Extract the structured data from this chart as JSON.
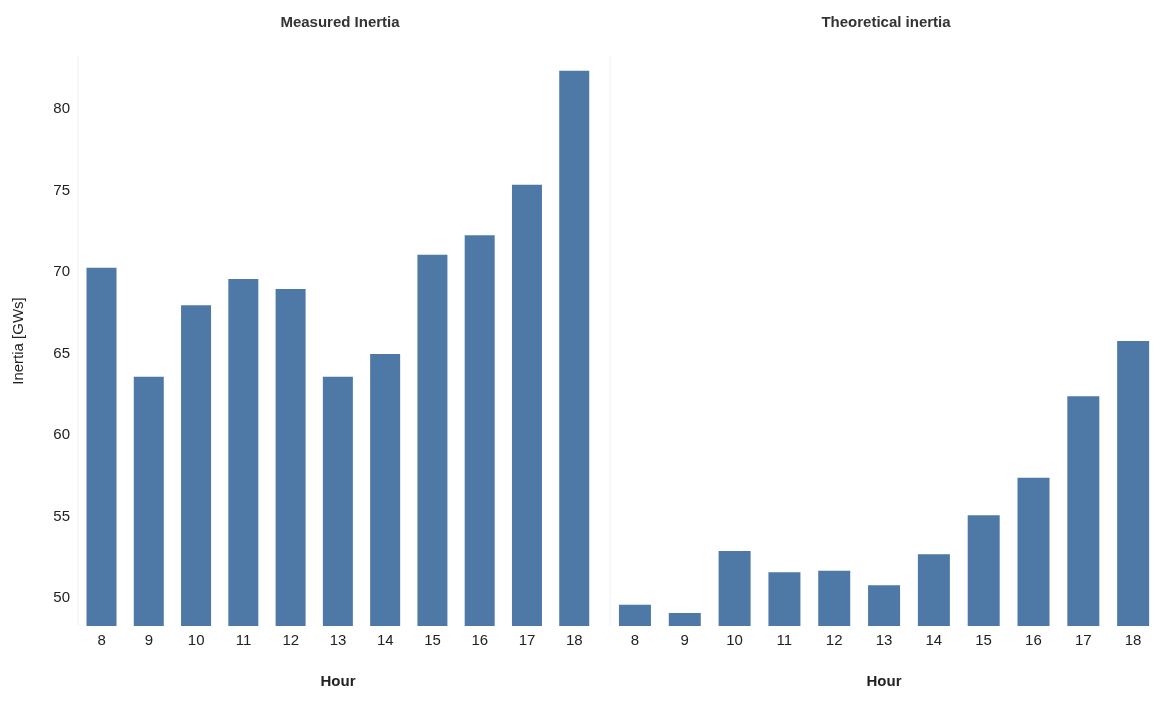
{
  "chart_data": [
    {
      "type": "bar",
      "title": "Measured Inertia",
      "xlabel": "Hour",
      "ylabel": "Inertia [GWs]",
      "categories": [
        "8",
        "9",
        "10",
        "11",
        "12",
        "13",
        "14",
        "15",
        "16",
        "17",
        "18"
      ],
      "values": [
        70.2,
        63.5,
        67.9,
        69.5,
        68.9,
        63.5,
        64.9,
        71.0,
        72.2,
        75.3,
        82.3
      ],
      "color": "#4e79a7",
      "ylim": [
        48.2,
        83.2
      ],
      "yticks": [
        50,
        55,
        60,
        65,
        70,
        75,
        80
      ],
      "grid": false
    },
    {
      "type": "bar",
      "title": "Theoretical inertia",
      "xlabel": "Hour",
      "categories": [
        "8",
        "9",
        "10",
        "11",
        "12",
        "13",
        "14",
        "15",
        "16",
        "17",
        "18"
      ],
      "values": [
        49.5,
        49.0,
        52.8,
        51.5,
        51.6,
        50.7,
        52.6,
        55.0,
        57.3,
        62.3,
        65.7
      ],
      "color": "#4e79a7",
      "ylim": [
        48.2,
        83.2
      ],
      "yticks": [
        50,
        55,
        60,
        65,
        70,
        75,
        80
      ],
      "tick_labels": "x",
      "grid": false
    }
  ]
}
